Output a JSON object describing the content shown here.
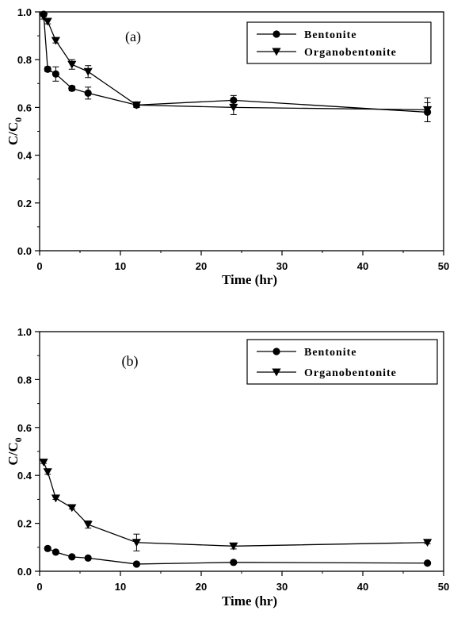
{
  "chart_data": [
    {
      "type": "line",
      "panel_label": "(a)",
      "xlabel": "Time (hr)",
      "ylabel": "C/C",
      "ylabel_sub": "0",
      "xlim": [
        0,
        50
      ],
      "ylim": [
        0,
        1.0
      ],
      "xticks": [
        "0",
        "10",
        "20",
        "30",
        "40",
        "50"
      ],
      "yticks": [
        "0.0",
        "0.2",
        "0.4",
        "0.6",
        "0.8",
        "1.0"
      ],
      "legend_position": "top-right",
      "series": [
        {
          "name": "Bentonite",
          "marker": "circle",
          "x": [
            0.5,
            1,
            2,
            4,
            6,
            12,
            24,
            48
          ],
          "y": [
            0.99,
            0.76,
            0.74,
            0.68,
            0.66,
            0.61,
            0.63,
            0.58
          ],
          "err": [
            0.01,
            0.01,
            0.03,
            0.01,
            0.025,
            0.01,
            0.02,
            0.04
          ]
        },
        {
          "name": "Organobentonite",
          "marker": "triangle-down",
          "x": [
            0.5,
            1,
            2,
            4,
            6,
            12,
            24,
            48
          ],
          "y": [
            0.98,
            0.96,
            0.88,
            0.78,
            0.75,
            0.61,
            0.6,
            0.59
          ],
          "err": [
            0.01,
            0.01,
            0.01,
            0.02,
            0.025,
            0.01,
            0.03,
            0.05
          ]
        }
      ]
    },
    {
      "type": "line",
      "panel_label": "(b)",
      "xlabel": "Time (hr)",
      "ylabel": "C/C",
      "ylabel_sub": "0",
      "xlim": [
        0,
        50
      ],
      "ylim": [
        0,
        1.0
      ],
      "xticks": [
        "0",
        "10",
        "20",
        "30",
        "40",
        "50"
      ],
      "yticks": [
        "0.0",
        "0.2",
        "0.4",
        "0.6",
        "0.8",
        "1.0"
      ],
      "legend_position": "top-right",
      "series": [
        {
          "name": "Bentonite",
          "marker": "circle",
          "x": [
            1,
            2,
            4,
            6,
            12,
            24,
            48
          ],
          "y": [
            0.095,
            0.08,
            0.06,
            0.055,
            0.03,
            0.037,
            0.034
          ],
          "err": [
            0.005,
            0.005,
            0.005,
            0.005,
            0.005,
            0.005,
            0.005
          ]
        },
        {
          "name": "Organobentonite",
          "marker": "triangle-down",
          "x": [
            0.5,
            1,
            2,
            4,
            6,
            12,
            24,
            48
          ],
          "y": [
            0.455,
            0.415,
            0.305,
            0.265,
            0.195,
            0.12,
            0.105,
            0.12
          ],
          "err": [
            0.005,
            0.01,
            0.005,
            0.005,
            0.015,
            0.035,
            0.012,
            0.005
          ]
        }
      ]
    }
  ]
}
